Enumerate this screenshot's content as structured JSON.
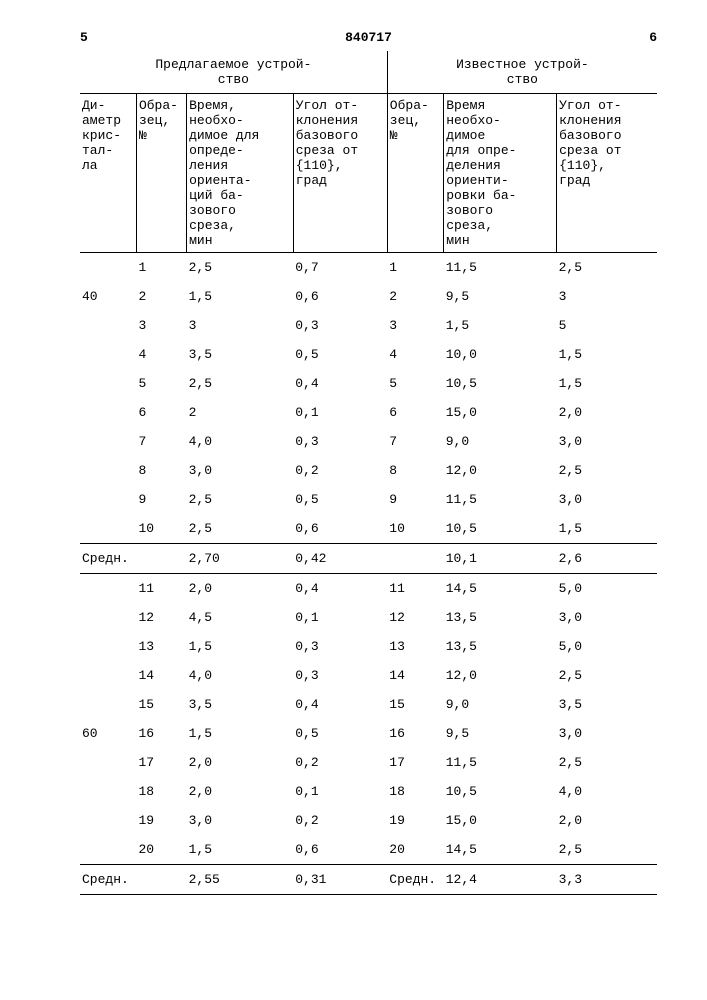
{
  "doc_number": "840717",
  "left_page": "5",
  "right_page": "6",
  "group1_title": "Предлагаемое устрой-\nство",
  "group2_title": "Известное устрой-\nство",
  "columns": {
    "c1": "Ди-\nаметр\nкрис-\nтал-\nла",
    "c2": "Обра-\nзец,\n№",
    "c3": "Время,\nнеобхо-\nдимое для\nопреде-\nления\nориента-\nций ба-\nзового\nсреза,\nмин",
    "c4": "Угол от-\nклонения\nбазового\nсреза от\n{110},\nград",
    "c5": "Обра-\nзец,\n№",
    "c6": "Время\nнеобхо-\nдимое\nдля опре-\nделения\nориенти-\nровки ба-\nзового\nсреза,\nмин",
    "c7": "Угол от-\nклонения\nбазового\nсреза от\n{110},\nград"
  },
  "rows": [
    {
      "d": "",
      "s1": "1",
      "t1": "2,5",
      "a1": "0,7",
      "s2": "1",
      "t2": "11,5",
      "a2": "2,5"
    },
    {
      "d": "40",
      "s1": "2",
      "t1": "1,5",
      "a1": "0,6",
      "s2": "2",
      "t2": "9,5",
      "a2": "3"
    },
    {
      "d": "",
      "s1": "3",
      "t1": "3",
      "a1": "0,3",
      "s2": "3",
      "t2": "1,5",
      "a2": "5"
    },
    {
      "d": "",
      "s1": "4",
      "t1": "3,5",
      "a1": "0,5",
      "s2": "4",
      "t2": "10,0",
      "a2": "1,5"
    },
    {
      "d": "",
      "s1": "5",
      "t1": "2,5",
      "a1": "0,4",
      "s2": "5",
      "t2": "10,5",
      "a2": "1,5"
    },
    {
      "d": "",
      "s1": "6",
      "t1": "2",
      "a1": "0,1",
      "s2": "6",
      "t2": "15,0",
      "a2": "2,0"
    },
    {
      "d": "",
      "s1": "7",
      "t1": "4,0",
      "a1": "0,3",
      "s2": "7",
      "t2": "9,0",
      "a2": "3,0"
    },
    {
      "d": "",
      "s1": "8",
      "t1": "3,0",
      "a1": "0,2",
      "s2": "8",
      "t2": "12,0",
      "a2": "2,5"
    },
    {
      "d": "",
      "s1": "9",
      "t1": "2,5",
      "a1": "0,5",
      "s2": "9",
      "t2": "11,5",
      "a2": "3,0"
    },
    {
      "d": "",
      "s1": "10",
      "t1": "2,5",
      "a1": "0,6",
      "s2": "10",
      "t2": "10,5",
      "a2": "1,5"
    }
  ],
  "avg1": {
    "label": "Средн.",
    "t1": "2,70",
    "a1": "0,42",
    "s2": "",
    "t2": "10,1",
    "a2": "2,6"
  },
  "rows2": [
    {
      "d": "",
      "s1": "11",
      "t1": "2,0",
      "a1": "0,4",
      "s2": "11",
      "t2": "14,5",
      "a2": "5,0"
    },
    {
      "d": "",
      "s1": "12",
      "t1": "4,5",
      "a1": "0,1",
      "s2": "12",
      "t2": "13,5",
      "a2": "3,0"
    },
    {
      "d": "",
      "s1": "13",
      "t1": "1,5",
      "a1": "0,3",
      "s2": "13",
      "t2": "13,5",
      "a2": "5,0"
    },
    {
      "d": "",
      "s1": "14",
      "t1": "4,0",
      "a1": "0,3",
      "s2": "14",
      "t2": "12,0",
      "a2": "2,5"
    },
    {
      "d": "",
      "s1": "15",
      "t1": "3,5",
      "a1": "0,4",
      "s2": "15",
      "t2": "9,0",
      "a2": "3,5"
    },
    {
      "d": "60",
      "s1": "16",
      "t1": "1,5",
      "a1": "0,5",
      "s2": "16",
      "t2": "9,5",
      "a2": "3,0"
    },
    {
      "d": "",
      "s1": "17",
      "t1": "2,0",
      "a1": "0,2",
      "s2": "17",
      "t2": "11,5",
      "a2": "2,5"
    },
    {
      "d": "",
      "s1": "18",
      "t1": "2,0",
      "a1": "0,1",
      "s2": "18",
      "t2": "10,5",
      "a2": "4,0"
    },
    {
      "d": "",
      "s1": "19",
      "t1": "3,0",
      "a1": "0,2",
      "s2": "19",
      "t2": "15,0",
      "a2": "2,0"
    },
    {
      "d": "",
      "s1": "20",
      "t1": "1,5",
      "a1": "0,6",
      "s2": "20",
      "t2": "14,5",
      "a2": "2,5"
    }
  ],
  "avg2": {
    "label": "Средн.",
    "t1": "2,55",
    "a1": "0,31",
    "s2": "Средн.",
    "t2": "12,4",
    "a2": "3,3"
  }
}
